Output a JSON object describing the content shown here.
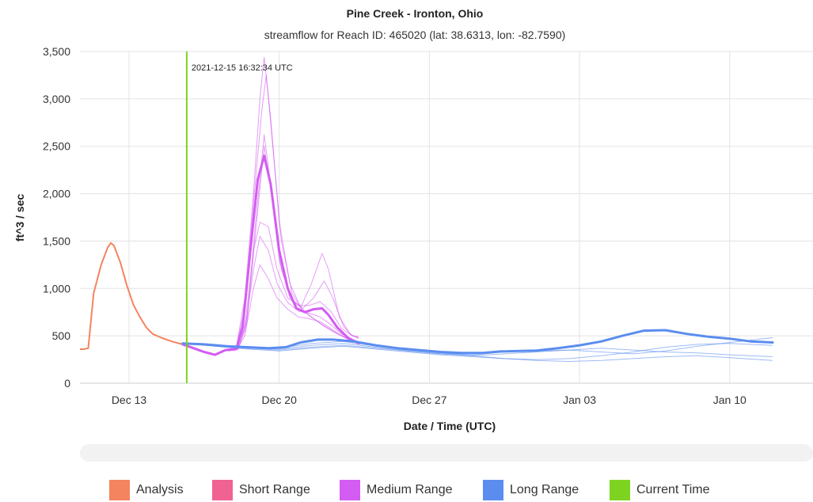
{
  "chart_data": {
    "type": "line",
    "title": "Pine Creek - Ironton, Ohio",
    "subtitle": "streamflow for Reach ID: 465020 (lat: 38.6313, lon: -82.7590)",
    "xlabel": "Date / Time (UTC)",
    "ylabel": "ft^3 / sec",
    "ylim": [
      0,
      3500
    ],
    "yticks": [
      "0",
      "500",
      "1,000",
      "1,500",
      "2,000",
      "2,500",
      "3,000",
      "3,500"
    ],
    "xticks": [
      "Dec 13",
      "Dec 20",
      "Dec 27",
      "Jan 03",
      "Jan 10"
    ],
    "grid": true,
    "current_time": {
      "label": "2021-12-15 16:32:34 UTC",
      "day": 15.69,
      "color": "#7ed321"
    },
    "series": [
      {
        "name": "Analysis",
        "color": "#f4845f",
        "width": 2,
        "points": [
          [
            10.0,
            360
          ],
          [
            10.4,
            355
          ],
          [
            10.9,
            360
          ],
          [
            11.1,
            370
          ],
          [
            11.35,
            950
          ],
          [
            11.7,
            1250
          ],
          [
            12.0,
            1430
          ],
          [
            12.15,
            1480
          ],
          [
            12.3,
            1450
          ],
          [
            12.6,
            1270
          ],
          [
            12.9,
            1030
          ],
          [
            13.2,
            830
          ],
          [
            13.5,
            700
          ],
          [
            13.8,
            590
          ],
          [
            14.1,
            520
          ],
          [
            14.5,
            480
          ],
          [
            15.0,
            440
          ],
          [
            15.5,
            410
          ]
        ]
      },
      {
        "name": "Short Range",
        "color": "#f06292",
        "width": 2,
        "points": []
      },
      {
        "name": "Medium Range",
        "color": "#d35cf2",
        "width": 3,
        "points": [
          [
            15.5,
            410
          ],
          [
            16.0,
            370
          ],
          [
            16.5,
            330
          ],
          [
            17.0,
            300
          ],
          [
            17.5,
            350
          ],
          [
            18.0,
            360
          ],
          [
            18.3,
            600
          ],
          [
            18.7,
            1500
          ],
          [
            19.0,
            2150
          ],
          [
            19.3,
            2400
          ],
          [
            19.6,
            2100
          ],
          [
            20.0,
            1400
          ],
          [
            20.4,
            1000
          ],
          [
            20.8,
            790
          ],
          [
            21.2,
            750
          ],
          [
            21.6,
            780
          ],
          [
            22.0,
            790
          ],
          [
            22.3,
            720
          ],
          [
            22.7,
            590
          ],
          [
            23.2,
            480
          ],
          [
            23.7,
            420
          ]
        ],
        "members": [
          [
            [
              17.6,
              360
            ],
            [
              18.0,
              380
            ],
            [
              18.4,
              900
            ],
            [
              18.8,
              2000
            ],
            [
              19.1,
              3000
            ],
            [
              19.3,
              3440
            ],
            [
              19.6,
              2800
            ],
            [
              20.0,
              1700
            ],
            [
              20.5,
              1050
            ],
            [
              21.0,
              800
            ],
            [
              21.5,
              700
            ],
            [
              22.0,
              620
            ],
            [
              22.6,
              540
            ],
            [
              23.2,
              470
            ],
            [
              23.7,
              440
            ]
          ],
          [
            [
              17.6,
              360
            ],
            [
              18.0,
              370
            ],
            [
              18.4,
              800
            ],
            [
              18.8,
              1900
            ],
            [
              19.2,
              2900
            ],
            [
              19.4,
              3250
            ],
            [
              19.7,
              2500
            ],
            [
              20.1,
              1500
            ],
            [
              20.6,
              950
            ],
            [
              21.1,
              760
            ],
            [
              21.6,
              680
            ],
            [
              22.1,
              600
            ],
            [
              22.7,
              520
            ],
            [
              23.3,
              460
            ],
            [
              23.7,
              430
            ]
          ],
          [
            [
              17.6,
              350
            ],
            [
              18.1,
              360
            ],
            [
              18.5,
              700
            ],
            [
              18.9,
              1700
            ],
            [
              19.3,
              2620
            ],
            [
              19.6,
              2100
            ],
            [
              20.0,
              1300
            ],
            [
              20.5,
              900
            ],
            [
              21.0,
              800
            ],
            [
              21.5,
              1050
            ],
            [
              22.0,
              1370
            ],
            [
              22.3,
              1200
            ],
            [
              22.8,
              700
            ],
            [
              23.3,
              520
            ],
            [
              23.7,
              470
            ]
          ],
          [
            [
              17.6,
              350
            ],
            [
              18.1,
              360
            ],
            [
              18.5,
              650
            ],
            [
              18.9,
              1600
            ],
            [
              19.3,
              2500
            ],
            [
              19.7,
              1900
            ],
            [
              20.1,
              1200
            ],
            [
              20.6,
              880
            ],
            [
              21.1,
              790
            ],
            [
              21.6,
              900
            ],
            [
              22.1,
              1080
            ],
            [
              22.5,
              900
            ],
            [
              23.0,
              600
            ],
            [
              23.4,
              500
            ],
            [
              23.7,
              480
            ]
          ],
          [
            [
              17.6,
              350
            ],
            [
              18.0,
              360
            ],
            [
              18.4,
              600
            ],
            [
              18.8,
              1400
            ],
            [
              19.1,
              1700
            ],
            [
              19.5,
              1650
            ],
            [
              19.9,
              1200
            ],
            [
              20.4,
              900
            ],
            [
              20.9,
              820
            ],
            [
              21.4,
              820
            ],
            [
              21.9,
              860
            ],
            [
              22.4,
              760
            ],
            [
              22.9,
              580
            ],
            [
              23.4,
              500
            ],
            [
              23.7,
              490
            ]
          ],
          [
            [
              17.6,
              350
            ],
            [
              18.0,
              355
            ],
            [
              18.4,
              550
            ],
            [
              18.8,
              1200
            ],
            [
              19.1,
              1550
            ],
            [
              19.5,
              1400
            ],
            [
              19.9,
              1050
            ],
            [
              20.4,
              850
            ],
            [
              20.9,
              760
            ],
            [
              21.4,
              740
            ],
            [
              21.9,
              700
            ],
            [
              22.4,
              620
            ],
            [
              22.9,
              520
            ],
            [
              23.4,
              460
            ],
            [
              23.7,
              440
            ]
          ],
          [
            [
              17.6,
              340
            ],
            [
              18.0,
              350
            ],
            [
              18.4,
              500
            ],
            [
              18.8,
              1000
            ],
            [
              19.1,
              1250
            ],
            [
              19.5,
              1100
            ],
            [
              19.9,
              900
            ],
            [
              20.4,
              780
            ],
            [
              20.9,
              700
            ],
            [
              21.4,
              680
            ],
            [
              21.9,
              650
            ],
            [
              22.4,
              580
            ],
            [
              22.9,
              500
            ],
            [
              23.4,
              440
            ],
            [
              23.7,
              420
            ]
          ]
        ]
      },
      {
        "name": "Long Range",
        "color": "#5b8def",
        "width": 3,
        "points": [
          [
            15.5,
            420
          ],
          [
            16.5,
            410
          ],
          [
            17.5,
            390
          ],
          [
            18.5,
            380
          ],
          [
            19.5,
            370
          ],
          [
            20.3,
            380
          ],
          [
            21.0,
            430
          ],
          [
            21.8,
            460
          ],
          [
            22.5,
            460
          ],
          [
            23.5,
            440
          ],
          [
            24.5,
            400
          ],
          [
            25.5,
            370
          ],
          [
            26.5,
            350
          ],
          [
            27.5,
            330
          ],
          [
            28.5,
            320
          ],
          [
            29.5,
            320
          ],
          [
            30.3,
            335
          ],
          [
            31.2,
            340
          ],
          [
            32.0,
            345
          ],
          [
            33.0,
            370
          ],
          [
            34.0,
            400
          ],
          [
            35.0,
            440
          ],
          [
            36.0,
            500
          ],
          [
            37.0,
            555
          ],
          [
            38.0,
            560
          ],
          [
            39.0,
            520
          ],
          [
            40.0,
            490
          ],
          [
            41.0,
            470
          ],
          [
            42.0,
            440
          ],
          [
            43.0,
            430
          ]
        ],
        "members": [
          [
            [
              15.5,
              420
            ],
            [
              17.0,
              400
            ],
            [
              18.5,
              370
            ],
            [
              20.0,
              360
            ],
            [
              21.5,
              400
            ],
            [
              23.0,
              420
            ],
            [
              24.5,
              380
            ],
            [
              26.0,
              340
            ],
            [
              27.5,
              310
            ],
            [
              29.0,
              300
            ],
            [
              30.5,
              330
            ],
            [
              32.0,
              340
            ],
            [
              33.5,
              350
            ],
            [
              35.0,
              370
            ],
            [
              36.5,
              350
            ],
            [
              38.0,
              330
            ],
            [
              39.5,
              320
            ],
            [
              41.0,
              300
            ],
            [
              43.0,
              280
            ]
          ],
          [
            [
              15.5,
              420
            ],
            [
              17.0,
              390
            ],
            [
              18.5,
              360
            ],
            [
              20.0,
              340
            ],
            [
              21.5,
              370
            ],
            [
              23.0,
              390
            ],
            [
              24.5,
              360
            ],
            [
              26.0,
              330
            ],
            [
              27.5,
              300
            ],
            [
              29.0,
              280
            ],
            [
              30.5,
              260
            ],
            [
              32.0,
              250
            ],
            [
              33.5,
              260
            ],
            [
              35.0,
              290
            ],
            [
              36.5,
              330
            ],
            [
              38.0,
              380
            ],
            [
              39.5,
              410
            ],
            [
              41.0,
              420
            ],
            [
              43.0,
              400
            ]
          ],
          [
            [
              15.5,
              420
            ],
            [
              17.0,
              410
            ],
            [
              18.5,
              380
            ],
            [
              20.0,
              370
            ],
            [
              21.5,
              420
            ],
            [
              23.0,
              440
            ],
            [
              24.5,
              390
            ],
            [
              26.0,
              350
            ],
            [
              27.5,
              320
            ],
            [
              29.0,
              290
            ],
            [
              30.5,
              260
            ],
            [
              32.0,
              240
            ],
            [
              33.5,
              230
            ],
            [
              35.0,
              240
            ],
            [
              36.5,
              260
            ],
            [
              38.0,
              280
            ],
            [
              39.5,
              290
            ],
            [
              41.0,
              270
            ],
            [
              43.0,
              240
            ]
          ],
          [
            [
              15.5,
              420
            ],
            [
              17.0,
              400
            ],
            [
              18.5,
              370
            ],
            [
              20.0,
              350
            ],
            [
              21.5,
              380
            ],
            [
              23.0,
              400
            ],
            [
              24.5,
              370
            ],
            [
              26.0,
              340
            ],
            [
              27.5,
              310
            ],
            [
              29.0,
              290
            ],
            [
              30.5,
              310
            ],
            [
              32.0,
              330
            ],
            [
              33.5,
              350
            ],
            [
              35.0,
              330
            ],
            [
              36.5,
              310
            ],
            [
              38.0,
              340
            ],
            [
              39.5,
              390
            ],
            [
              41.0,
              430
            ],
            [
              43.0,
              480
            ]
          ]
        ]
      },
      {
        "name": "Current Time",
        "color": "#7ed321",
        "width": 2,
        "points": []
      }
    ]
  }
}
